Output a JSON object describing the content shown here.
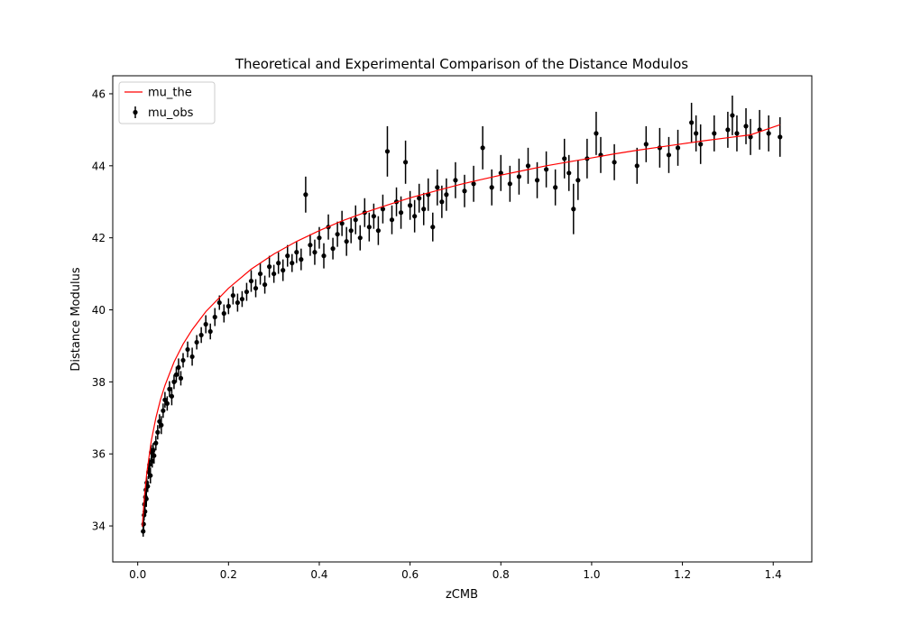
{
  "chart_data": {
    "type": "scatter",
    "title": "Theoretical and Experimental Comparison of the Distance Modulos",
    "xlabel": "zCMB",
    "ylabel": "Distance Modulus",
    "xlim": [
      -0.055,
      1.485
    ],
    "ylim": [
      33.0,
      46.5
    ],
    "xticks": [
      0.0,
      0.2,
      0.4,
      0.6,
      0.8,
      1.0,
      1.2,
      1.4
    ],
    "xtick_labels": [
      "0.0",
      "0.2",
      "0.4",
      "0.6",
      "0.8",
      "1.0",
      "1.2",
      "1.4"
    ],
    "yticks": [
      34,
      36,
      38,
      40,
      42,
      44,
      46
    ],
    "ytick_labels": [
      "34",
      "36",
      "38",
      "40",
      "42",
      "44",
      "46"
    ],
    "grid": false,
    "legend": {
      "position": "upper-left",
      "entries": [
        {
          "label": "mu_the",
          "kind": "line",
          "color": "#ff0000"
        },
        {
          "label": "mu_obs",
          "kind": "errorbar",
          "color": "#000000"
        }
      ]
    },
    "series": [
      {
        "name": "mu_the",
        "kind": "line",
        "color": "#ff0000",
        "x": [
          0.01,
          0.015,
          0.02,
          0.03,
          0.04,
          0.05,
          0.06,
          0.08,
          0.1,
          0.12,
          0.15,
          0.2,
          0.25,
          0.3,
          0.35,
          0.4,
          0.45,
          0.5,
          0.55,
          0.6,
          0.65,
          0.7,
          0.75,
          0.8,
          0.85,
          0.9,
          0.95,
          1.0,
          1.05,
          1.1,
          1.15,
          1.2,
          1.25,
          1.3,
          1.35,
          1.415
        ],
        "y": [
          33.98,
          34.85,
          35.47,
          36.37,
          37.0,
          37.5,
          37.9,
          38.55,
          39.05,
          39.45,
          39.95,
          40.6,
          41.13,
          41.55,
          41.9,
          42.2,
          42.47,
          42.7,
          42.91,
          43.11,
          43.28,
          43.45,
          43.6,
          43.74,
          43.87,
          44.0,
          44.11,
          44.22,
          44.33,
          44.43,
          44.52,
          44.61,
          44.7,
          44.78,
          44.86,
          45.14
        ]
      },
      {
        "name": "mu_obs",
        "kind": "errorbar",
        "color": "#000000",
        "points": [
          [
            0.012,
            33.85,
            0.15
          ],
          [
            0.013,
            34.05,
            0.18
          ],
          [
            0.014,
            34.3,
            0.15
          ],
          [
            0.015,
            34.6,
            0.2
          ],
          [
            0.016,
            34.4,
            0.14
          ],
          [
            0.017,
            34.8,
            0.18
          ],
          [
            0.018,
            35.0,
            0.15
          ],
          [
            0.019,
            34.75,
            0.22
          ],
          [
            0.02,
            35.2,
            0.18
          ],
          [
            0.022,
            35.1,
            0.16
          ],
          [
            0.024,
            35.5,
            0.2
          ],
          [
            0.026,
            35.7,
            0.18
          ],
          [
            0.028,
            35.4,
            0.22
          ],
          [
            0.03,
            36.05,
            0.2
          ],
          [
            0.032,
            35.8,
            0.18
          ],
          [
            0.034,
            36.1,
            0.2
          ],
          [
            0.036,
            35.95,
            0.22
          ],
          [
            0.04,
            36.3,
            0.2
          ],
          [
            0.044,
            36.6,
            0.2
          ],
          [
            0.048,
            36.9,
            0.2
          ],
          [
            0.052,
            36.8,
            0.25
          ],
          [
            0.056,
            37.2,
            0.2
          ],
          [
            0.06,
            37.5,
            0.22
          ],
          [
            0.065,
            37.4,
            0.2
          ],
          [
            0.07,
            37.8,
            0.22
          ],
          [
            0.075,
            37.6,
            0.25
          ],
          [
            0.08,
            38.0,
            0.2
          ],
          [
            0.085,
            38.2,
            0.22
          ],
          [
            0.09,
            38.4,
            0.25
          ],
          [
            0.095,
            38.1,
            0.2
          ],
          [
            0.1,
            38.6,
            0.2
          ],
          [
            0.11,
            38.9,
            0.22
          ],
          [
            0.12,
            38.7,
            0.25
          ],
          [
            0.13,
            39.1,
            0.2
          ],
          [
            0.14,
            39.3,
            0.22
          ],
          [
            0.15,
            39.6,
            0.25
          ],
          [
            0.16,
            39.4,
            0.22
          ],
          [
            0.17,
            39.8,
            0.25
          ],
          [
            0.18,
            40.2,
            0.2
          ],
          [
            0.19,
            39.9,
            0.25
          ],
          [
            0.2,
            40.1,
            0.22
          ],
          [
            0.21,
            40.4,
            0.25
          ],
          [
            0.22,
            40.2,
            0.25
          ],
          [
            0.23,
            40.3,
            0.22
          ],
          [
            0.24,
            40.5,
            0.25
          ],
          [
            0.25,
            40.8,
            0.3
          ],
          [
            0.26,
            40.6,
            0.25
          ],
          [
            0.27,
            41.0,
            0.3
          ],
          [
            0.28,
            40.7,
            0.25
          ],
          [
            0.29,
            41.2,
            0.3
          ],
          [
            0.3,
            41.0,
            0.25
          ],
          [
            0.31,
            41.3,
            0.3
          ],
          [
            0.32,
            41.1,
            0.3
          ],
          [
            0.33,
            41.5,
            0.3
          ],
          [
            0.34,
            41.3,
            0.25
          ],
          [
            0.35,
            41.6,
            0.3
          ],
          [
            0.36,
            41.4,
            0.3
          ],
          [
            0.37,
            43.2,
            0.5
          ],
          [
            0.38,
            41.8,
            0.3
          ],
          [
            0.39,
            41.6,
            0.35
          ],
          [
            0.4,
            42.0,
            0.3
          ],
          [
            0.41,
            41.5,
            0.35
          ],
          [
            0.42,
            42.3,
            0.35
          ],
          [
            0.43,
            41.7,
            0.3
          ],
          [
            0.44,
            42.1,
            0.35
          ],
          [
            0.45,
            42.4,
            0.35
          ],
          [
            0.46,
            41.9,
            0.4
          ],
          [
            0.47,
            42.2,
            0.35
          ],
          [
            0.48,
            42.5,
            0.4
          ],
          [
            0.49,
            42.0,
            0.35
          ],
          [
            0.5,
            42.7,
            0.4
          ],
          [
            0.51,
            42.3,
            0.4
          ],
          [
            0.52,
            42.6,
            0.35
          ],
          [
            0.53,
            42.2,
            0.4
          ],
          [
            0.54,
            42.8,
            0.4
          ],
          [
            0.55,
            44.4,
            0.7
          ],
          [
            0.56,
            42.5,
            0.4
          ],
          [
            0.57,
            43.0,
            0.4
          ],
          [
            0.58,
            42.7,
            0.45
          ],
          [
            0.59,
            44.1,
            0.6
          ],
          [
            0.6,
            42.9,
            0.4
          ],
          [
            0.61,
            42.6,
            0.45
          ],
          [
            0.62,
            43.1,
            0.4
          ],
          [
            0.63,
            42.8,
            0.45
          ],
          [
            0.64,
            43.2,
            0.45
          ],
          [
            0.65,
            42.3,
            0.4
          ],
          [
            0.66,
            43.4,
            0.5
          ],
          [
            0.67,
            43.0,
            0.45
          ],
          [
            0.68,
            43.2,
            0.45
          ],
          [
            0.7,
            43.6,
            0.5
          ],
          [
            0.72,
            43.3,
            0.45
          ],
          [
            0.74,
            43.5,
            0.5
          ],
          [
            0.76,
            44.5,
            0.6
          ],
          [
            0.78,
            43.4,
            0.5
          ],
          [
            0.8,
            43.8,
            0.5
          ],
          [
            0.82,
            43.5,
            0.5
          ],
          [
            0.84,
            43.7,
            0.5
          ],
          [
            0.86,
            44.0,
            0.5
          ],
          [
            0.88,
            43.6,
            0.5
          ],
          [
            0.9,
            43.9,
            0.5
          ],
          [
            0.92,
            43.4,
            0.5
          ],
          [
            0.94,
            44.2,
            0.55
          ],
          [
            0.95,
            43.8,
            0.5
          ],
          [
            0.96,
            42.8,
            0.7
          ],
          [
            0.97,
            43.6,
            0.55
          ],
          [
            0.99,
            44.2,
            0.55
          ],
          [
            1.01,
            44.9,
            0.6
          ],
          [
            1.02,
            44.3,
            0.5
          ],
          [
            1.05,
            44.1,
            0.5
          ],
          [
            1.1,
            44.0,
            0.5
          ],
          [
            1.12,
            44.6,
            0.5
          ],
          [
            1.15,
            44.5,
            0.55
          ],
          [
            1.17,
            44.3,
            0.5
          ],
          [
            1.19,
            44.5,
            0.5
          ],
          [
            1.22,
            45.2,
            0.55
          ],
          [
            1.23,
            44.9,
            0.5
          ],
          [
            1.24,
            44.6,
            0.55
          ],
          [
            1.27,
            44.9,
            0.5
          ],
          [
            1.3,
            45.0,
            0.5
          ],
          [
            1.31,
            45.4,
            0.55
          ],
          [
            1.32,
            44.9,
            0.5
          ],
          [
            1.34,
            45.1,
            0.5
          ],
          [
            1.35,
            44.8,
            0.5
          ],
          [
            1.37,
            45.0,
            0.55
          ],
          [
            1.39,
            44.9,
            0.5
          ],
          [
            1.415,
            44.8,
            0.55
          ]
        ]
      }
    ]
  }
}
